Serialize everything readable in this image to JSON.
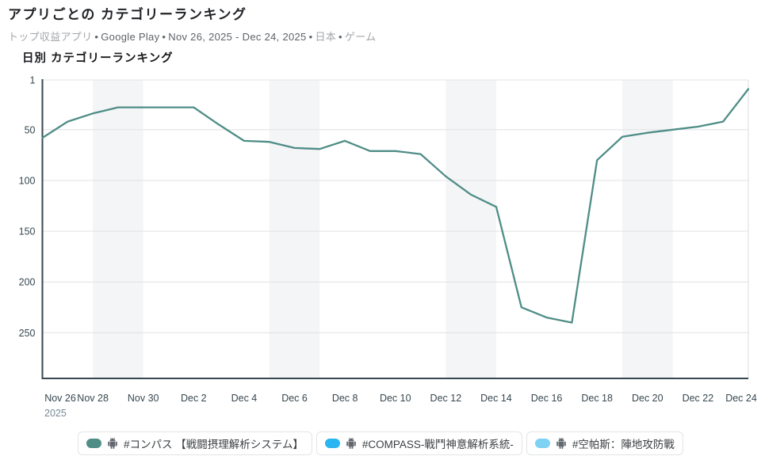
{
  "header": {
    "title": "アプリごとの カテゴリーランキング",
    "subtitle_parts": [
      {
        "text": "トップ収益アプリ",
        "muted": true
      },
      {
        "text": "Google Play",
        "muted": false
      },
      {
        "text": "Nov 26, 2025 - Dec 24, 2025",
        "muted": false
      },
      {
        "text": "日本",
        "muted": true
      },
      {
        "text": "ゲーム",
        "muted": true
      }
    ],
    "separator": "•"
  },
  "chart_header": "日別 カテゴリーランキング",
  "chart_data": {
    "type": "line",
    "title": "日別 カテゴリーランキング",
    "x": [
      "Nov 26",
      "Nov 27",
      "Nov 28",
      "Nov 29",
      "Nov 30",
      "Dec 1",
      "Dec 2",
      "Dec 3",
      "Dec 4",
      "Dec 5",
      "Dec 6",
      "Dec 7",
      "Dec 8",
      "Dec 9",
      "Dec 10",
      "Dec 11",
      "Dec 12",
      "Dec 13",
      "Dec 14",
      "Dec 15",
      "Dec 16",
      "Dec 17",
      "Dec 18",
      "Dec 19",
      "Dec 20",
      "Dec 21",
      "Dec 22",
      "Dec 23",
      "Dec 24"
    ],
    "x_tick_labels": [
      "Nov 26",
      "Nov 28",
      "Nov 30",
      "Dec 2",
      "Dec 4",
      "Dec 6",
      "Dec 8",
      "Dec 10",
      "Dec 12",
      "Dec 14",
      "Dec 16",
      "Dec 18",
      "Dec 20",
      "Dec 22",
      "Dec 24"
    ],
    "x_tick_every": 2,
    "year_label": "2025",
    "ylabel": "",
    "xlabel": "",
    "y_axis_inverted": true,
    "y_ticks": [
      1,
      50,
      100,
      150,
      200,
      250
    ],
    "ylim": [
      1,
      295
    ],
    "grid": "horizontal",
    "weekend_band_index_ranges": [
      [
        2,
        4
      ],
      [
        9,
        11
      ],
      [
        16,
        18
      ],
      [
        23,
        25
      ]
    ],
    "series": [
      {
        "name": "#コンパス 【戦闘摂理解析システム】",
        "color": "#4f8d87",
        "values": [
          58,
          42,
          34,
          28,
          28,
          28,
          28,
          45,
          61,
          62,
          68,
          69,
          61,
          71,
          71,
          74,
          96,
          114,
          126,
          225,
          235,
          240,
          80,
          57,
          53,
          50,
          47,
          42,
          10
        ]
      },
      {
        "name": "#COMPASS-戰鬥神意解析系統-",
        "color": "#29b5f0",
        "values": []
      },
      {
        "name": "#空帕斯：陣地攻防戰",
        "color": "#7ed2f4",
        "values": []
      }
    ],
    "legend_position": "bottom"
  },
  "legend": {
    "items": [
      {
        "label": "#コンパス 【戦闘摂理解析システム】",
        "color": "#4f8d87",
        "platform": "android"
      },
      {
        "label": "#COMPASS-戰鬥神意解析系統-",
        "color": "#29b5f0",
        "platform": "android"
      },
      {
        "label": "#空帕斯：陣地攻防戰",
        "color": "#7ed2f4",
        "platform": "android"
      }
    ]
  }
}
